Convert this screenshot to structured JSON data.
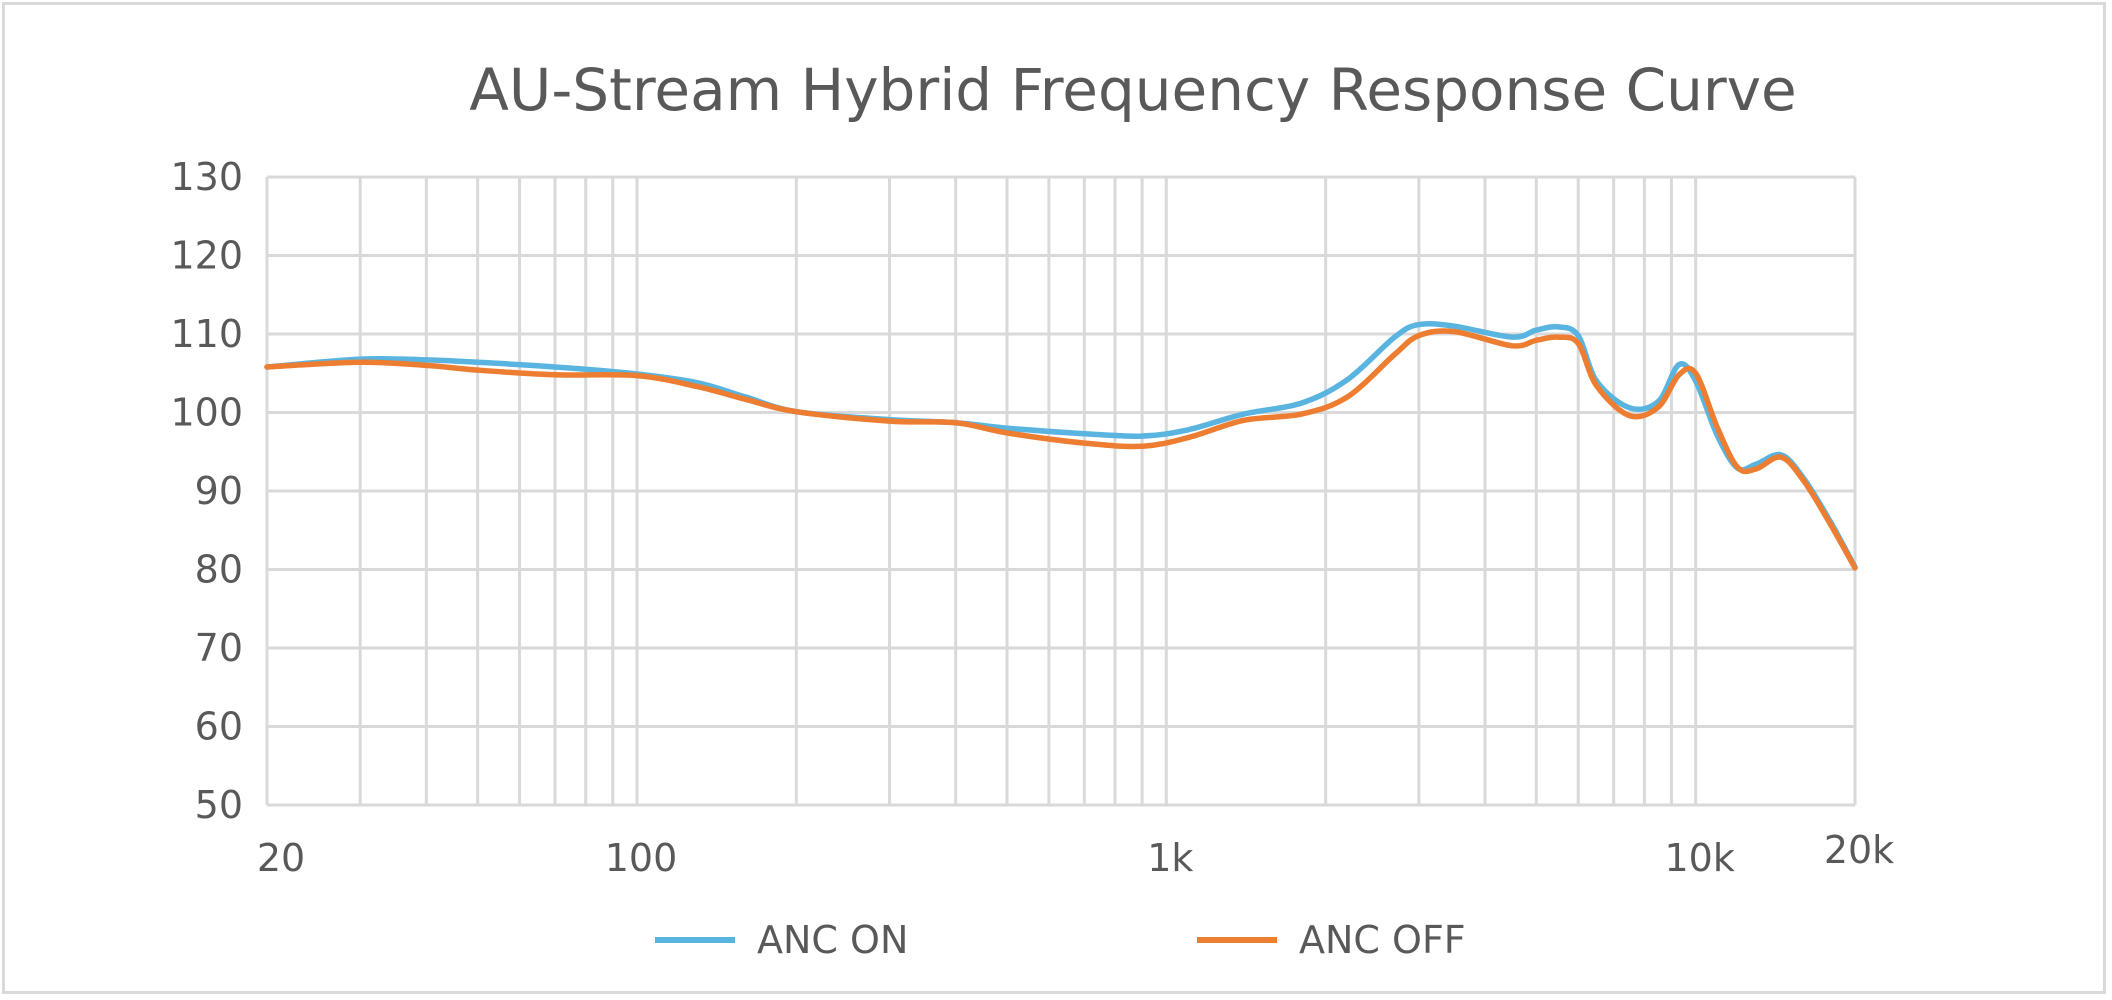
{
  "chart_data": {
    "type": "line",
    "title": "AU-Stream Hybrid Frequency Response Curve",
    "xlabel": "",
    "ylabel": "",
    "x_scale": "log",
    "xlim": [
      20,
      20000
    ],
    "ylim": [
      50,
      130
    ],
    "y_ticks": [
      50,
      60,
      70,
      80,
      90,
      100,
      110,
      120,
      130
    ],
    "x_tick_values": [
      20,
      100,
      1000,
      10000,
      20000
    ],
    "x_tick_labels": [
      "20",
      "100",
      "1k",
      "10k",
      "20k"
    ],
    "grid": true,
    "legend_position": "bottom",
    "series": [
      {
        "name": "ANC ON",
        "color": "#5ab4e0",
        "x": [
          20,
          30,
          40,
          50,
          70,
          100,
          130,
          160,
          200,
          300,
          400,
          500,
          700,
          900,
          1100,
          1400,
          1800,
          2200,
          2700,
          3000,
          3500,
          4500,
          5000,
          5500,
          6000,
          6500,
          7500,
          8500,
          9300,
          10000,
          11000,
          12000,
          13000,
          14500,
          16000,
          18000,
          20000
        ],
        "values": [
          105.8,
          106.8,
          106.7,
          106.4,
          105.8,
          104.9,
          103.8,
          102.0,
          100.1,
          99.1,
          98.7,
          98.0,
          97.3,
          97.0,
          97.8,
          99.8,
          101.2,
          104.2,
          109.6,
          111.2,
          111.0,
          109.6,
          110.5,
          110.9,
          109.8,
          104.0,
          100.6,
          101.4,
          106.1,
          104.0,
          97.0,
          92.9,
          93.4,
          94.6,
          91.6,
          86.0,
          80.3
        ]
      },
      {
        "name": "ANC OFF",
        "color": "#ed7d31",
        "x": [
          20,
          30,
          40,
          50,
          70,
          100,
          130,
          160,
          200,
          300,
          400,
          500,
          700,
          900,
          1100,
          1400,
          1800,
          2200,
          2700,
          3000,
          3500,
          4500,
          5000,
          5500,
          6000,
          6500,
          7500,
          8500,
          9300,
          10000,
          11000,
          12000,
          13000,
          14500,
          16000,
          18000,
          20000
        ],
        "values": [
          105.8,
          106.4,
          106.0,
          105.4,
          104.8,
          104.7,
          103.3,
          101.7,
          100.1,
          98.9,
          98.7,
          97.4,
          96.1,
          95.7,
          96.8,
          99.0,
          99.8,
          102.0,
          107.4,
          109.8,
          110.3,
          108.5,
          109.2,
          109.6,
          108.8,
          103.4,
          99.6,
          100.7,
          104.8,
          105.0,
          98.0,
          93.0,
          92.8,
          94.3,
          91.3,
          85.7,
          80.2
        ]
      }
    ]
  }
}
